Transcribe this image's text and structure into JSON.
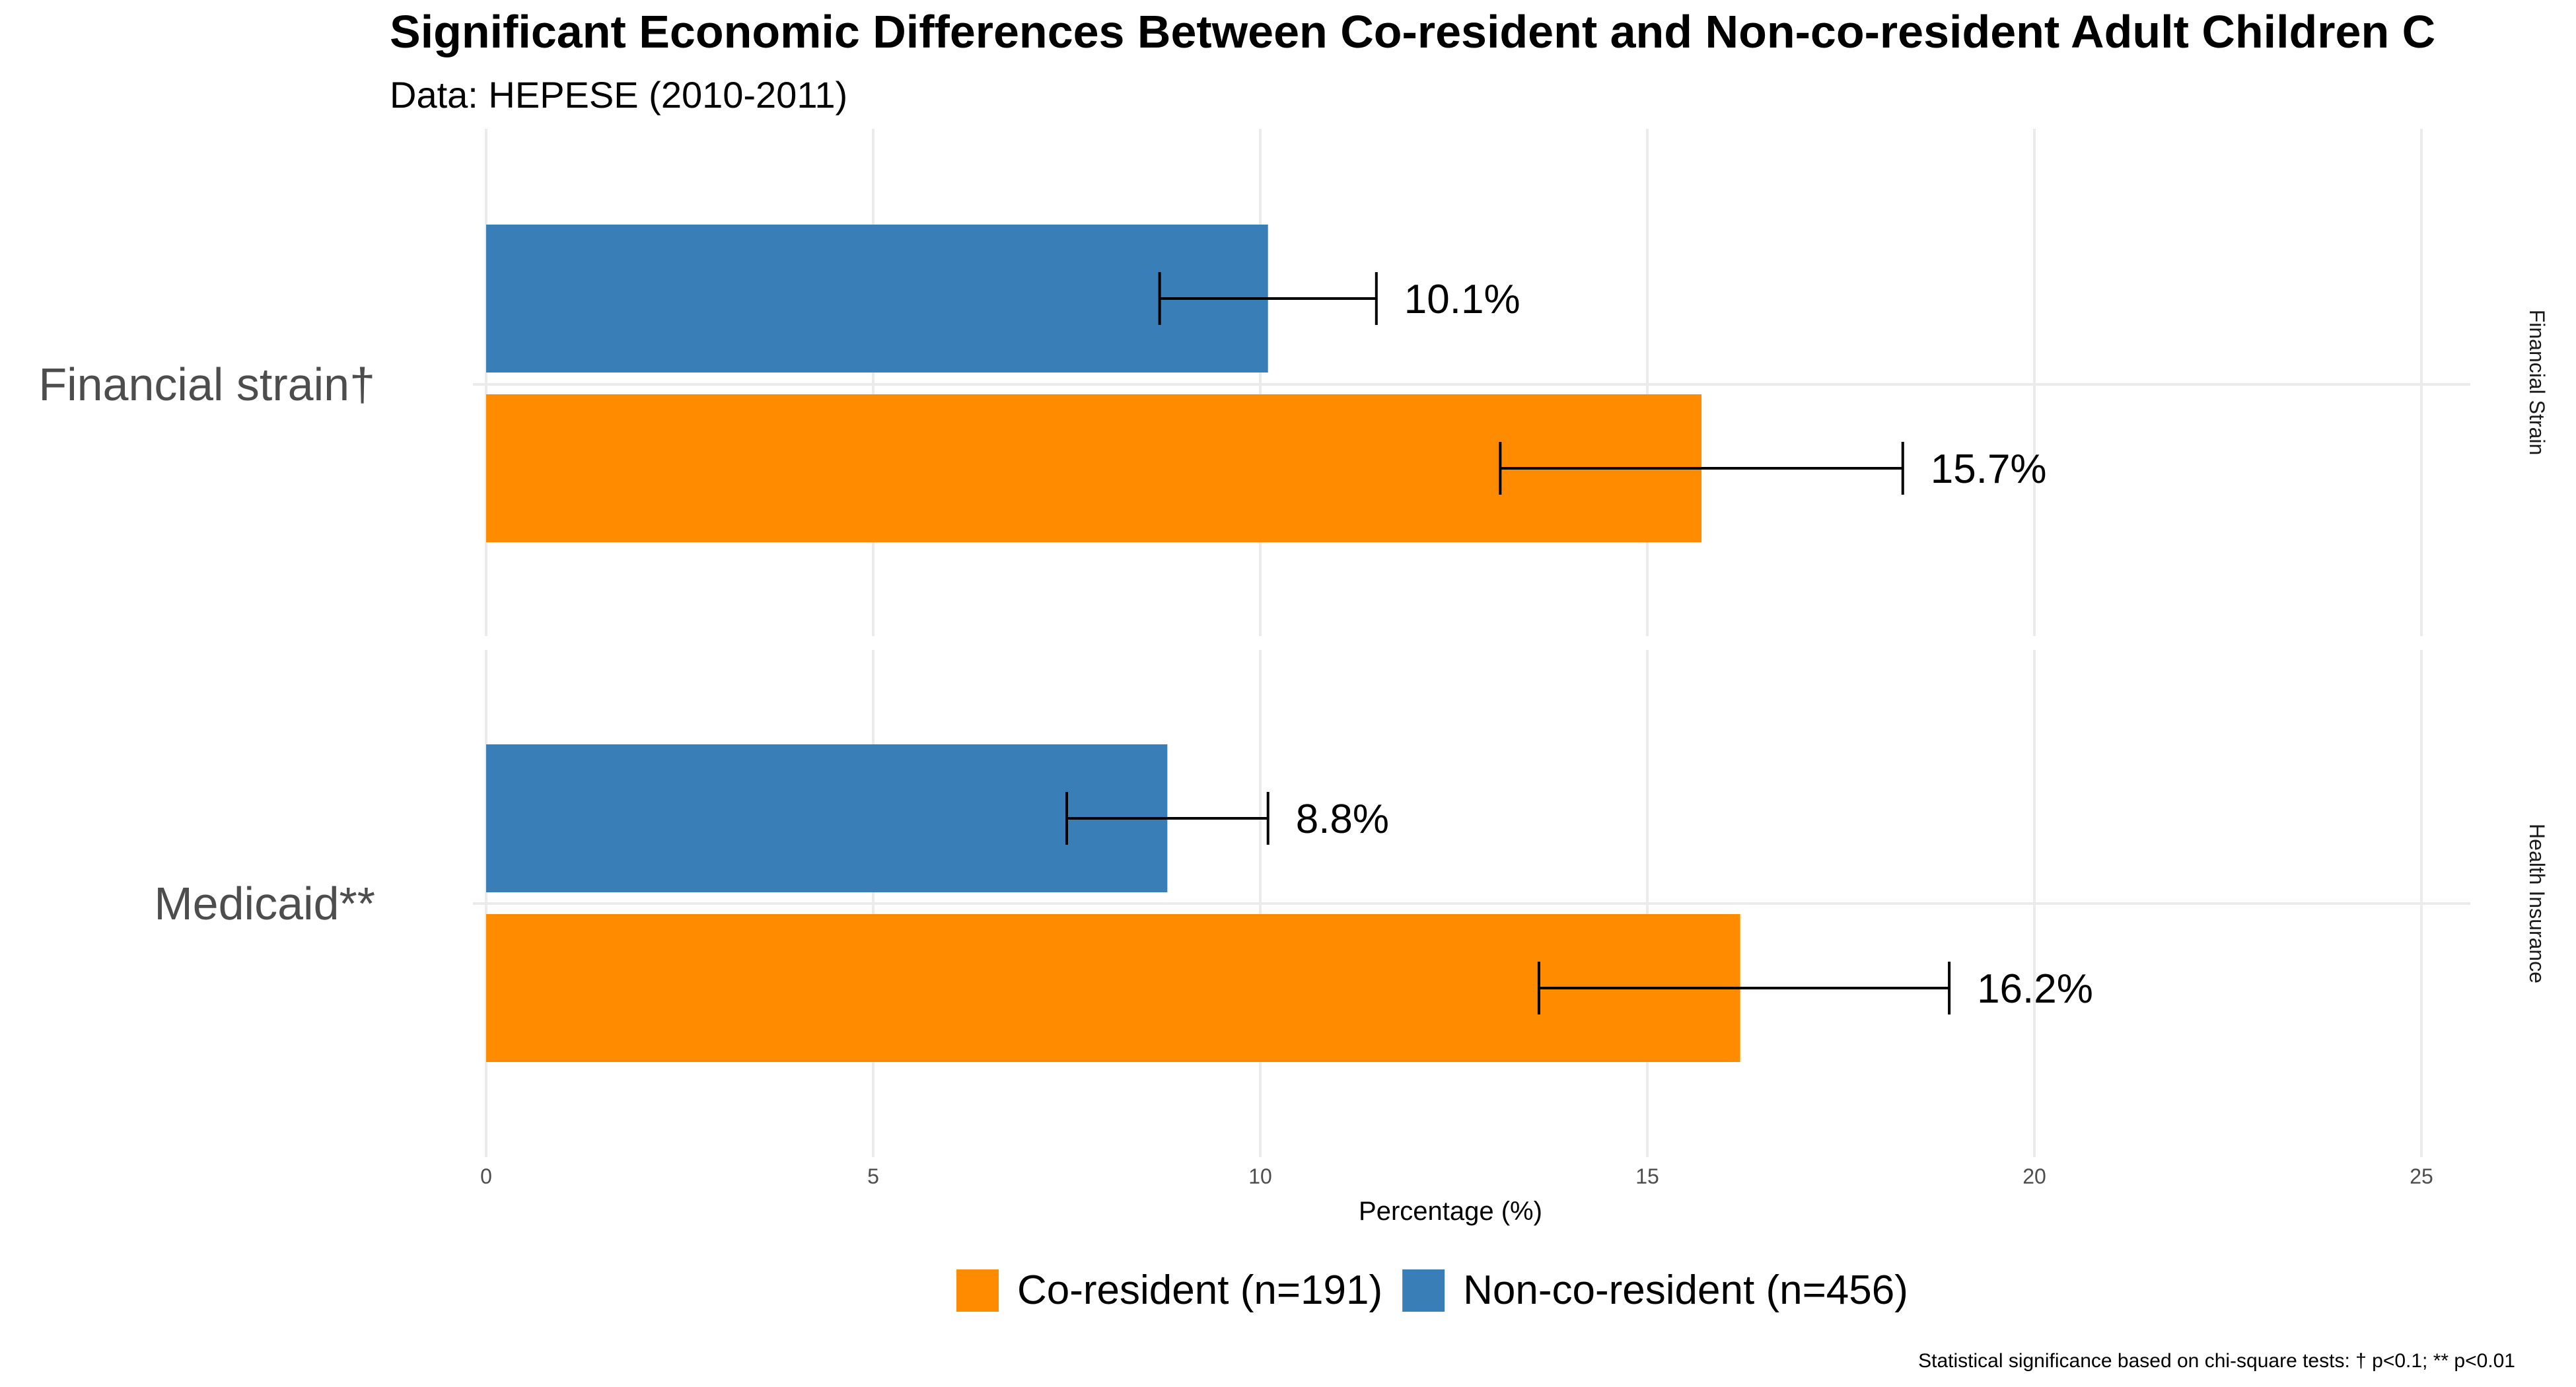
{
  "title": "Significant Economic Differences Between Co-resident and Non-co-resident Adult Children C",
  "subtitle": "Data: HEPESE (2010-2011)",
  "caption": "Statistical significance based on chi-square tests: † p<0.1; ** p<0.01",
  "chart_data": {
    "type": "bar",
    "orientation": "horizontal",
    "xlabel": "Percentage (%)",
    "xlim": [
      0,
      25
    ],
    "x_ticks": [
      0,
      5,
      10,
      15,
      20,
      25
    ],
    "grid": true,
    "legend_position": "bottom",
    "series": [
      {
        "name": "Co-resident (n=191)",
        "color": "#FF8C00"
      },
      {
        "name": "Non-co-resident (n=456)",
        "color": "#3A7EB8"
      }
    ],
    "facets": [
      {
        "name": "Financial Strain",
        "category": "Financial strain†",
        "bars": [
          {
            "series": "Non-co-resident (n=456)",
            "value": 10.1,
            "error_low": 8.7,
            "error_high": 11.5,
            "label": "10.1%"
          },
          {
            "series": "Co-resident (n=191)",
            "value": 15.7,
            "error_low": 13.1,
            "error_high": 18.3,
            "label": "15.7%"
          }
        ]
      },
      {
        "name": "Health Insurance",
        "category": "Medicaid**",
        "bars": [
          {
            "series": "Non-co-resident (n=456)",
            "value": 8.8,
            "error_low": 7.5,
            "error_high": 10.1,
            "label": "8.8%"
          },
          {
            "series": "Co-resident (n=191)",
            "value": 16.2,
            "error_low": 13.6,
            "error_high": 18.9,
            "label": "16.2%"
          }
        ]
      }
    ]
  }
}
